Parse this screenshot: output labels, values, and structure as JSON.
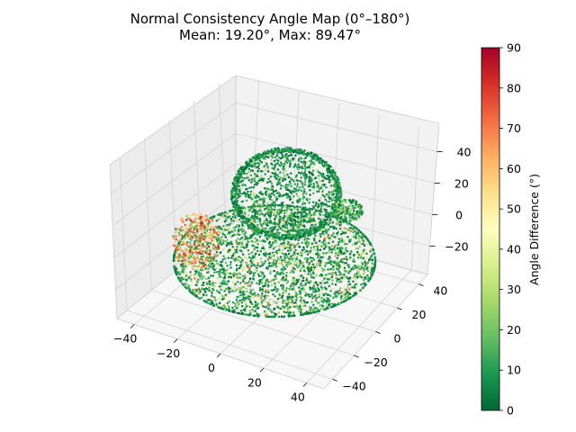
{
  "chart_data": {
    "type": "scatter",
    "title": "Normal Consistency Angle Map (0°–180°)",
    "subtitle": "Mean: 19.20°, Max: 89.47°",
    "projection": "3d",
    "colormap": "RdYlGn_r",
    "x_axis": {
      "ticks": [
        "−40",
        "−20",
        "0",
        "20",
        "40"
      ],
      "range": [
        -48,
        48
      ]
    },
    "y_axis": {
      "ticks": [
        "−40",
        "−20",
        "0",
        "20",
        "40"
      ],
      "range": [
        -48,
        48
      ]
    },
    "z_axis": {
      "ticks": [
        "−20",
        "0",
        "20",
        "40"
      ],
      "range": [
        -38,
        58
      ]
    },
    "colorbar": {
      "label": "Angle Difference (°)",
      "ticks": [
        "0",
        "10",
        "20",
        "30",
        "40",
        "50",
        "60",
        "70",
        "80",
        "90"
      ],
      "range": [
        0,
        90
      ]
    },
    "stats": {
      "mean_deg": 19.2,
      "max_deg": 89.47
    },
    "colors": {
      "low": "#006837",
      "mid": "#ffffbf",
      "high": "#a50026"
    }
  }
}
